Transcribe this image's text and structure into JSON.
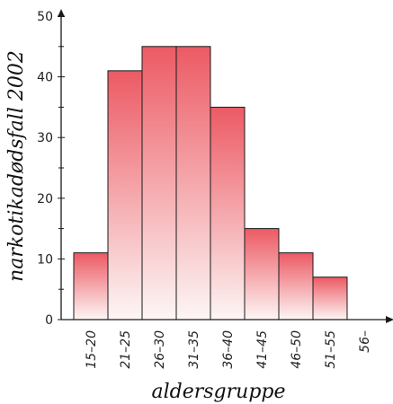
{
  "chart_data": {
    "type": "bar",
    "categories": [
      "15–20",
      "21–25",
      "26–30",
      "31–35",
      "36–40",
      "41–45",
      "46–50",
      "51–55",
      "56–"
    ],
    "values": [
      11,
      41,
      45,
      45,
      35,
      15,
      11,
      7,
      0
    ],
    "title": "",
    "xlabel": "aldersgruppe",
    "ylabel": "narkotikadødsfall 2002",
    "ylim": [
      0,
      50
    ],
    "yticks": [
      0,
      10,
      20,
      30,
      40,
      50
    ],
    "grid": false,
    "colors": {
      "bar_top": "#ec5a64",
      "bar_bottom": "#fdf6f5",
      "bar_stroke": "#1a1a1a",
      "axis": "#1a1a1a"
    }
  }
}
